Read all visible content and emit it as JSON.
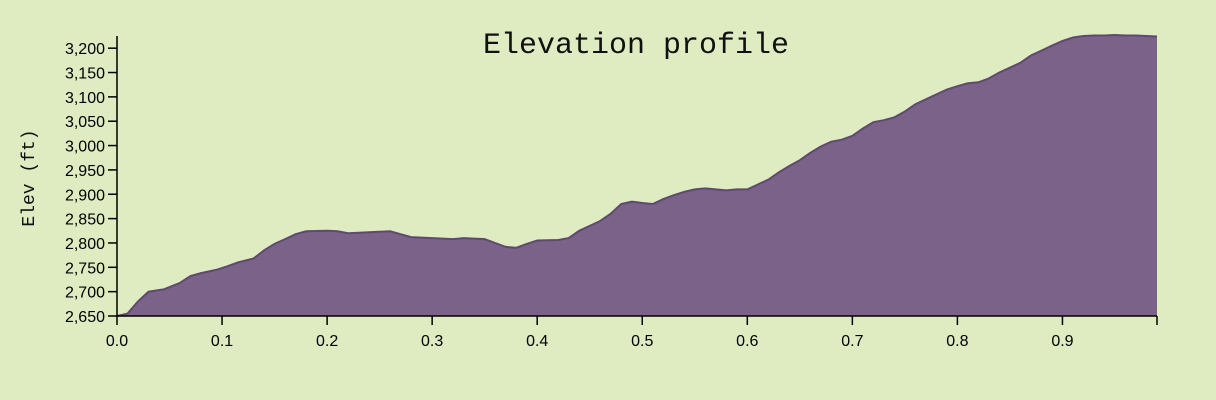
{
  "chart_data": {
    "type": "area",
    "title": "Elevation profile",
    "xlabel": "",
    "ylabel": "Elev (ft)",
    "xlim": [
      0,
      0.99
    ],
    "ylim": [
      2650,
      3225
    ],
    "x_ticks": [
      "0.0",
      "0.1",
      "0.2",
      "0.3",
      "0.4",
      "0.5",
      "0.6",
      "0.7",
      "0.8",
      "0.9"
    ],
    "x_tick_values": [
      0,
      0.1,
      0.2,
      0.3,
      0.4,
      0.5,
      0.6,
      0.7,
      0.8,
      0.9
    ],
    "y_ticks": [
      "2,650",
      "2,700",
      "2,750",
      "2,800",
      "2,850",
      "2,900",
      "2,950",
      "3,000",
      "3,050",
      "3,100",
      "3,150",
      "3,200"
    ],
    "y_tick_values": [
      2650,
      2700,
      2750,
      2800,
      2850,
      2900,
      2950,
      3000,
      3050,
      3100,
      3150,
      3200
    ],
    "grid": false,
    "colors": {
      "fill": "#7a6288",
      "line": "#5f4a6f",
      "background": "#dfebc1"
    },
    "x": [
      0.0,
      0.01,
      0.02,
      0.025,
      0.03,
      0.045,
      0.06,
      0.07,
      0.08,
      0.095,
      0.105,
      0.115,
      0.13,
      0.14,
      0.15,
      0.16,
      0.17,
      0.18,
      0.2,
      0.21,
      0.22,
      0.24,
      0.26,
      0.27,
      0.28,
      0.3,
      0.32,
      0.33,
      0.35,
      0.36,
      0.37,
      0.38,
      0.39,
      0.4,
      0.42,
      0.43,
      0.44,
      0.45,
      0.46,
      0.47,
      0.48,
      0.49,
      0.5,
      0.51,
      0.52,
      0.53,
      0.54,
      0.55,
      0.56,
      0.57,
      0.58,
      0.59,
      0.6,
      0.61,
      0.62,
      0.63,
      0.64,
      0.65,
      0.66,
      0.67,
      0.68,
      0.69,
      0.7,
      0.71,
      0.72,
      0.73,
      0.74,
      0.75,
      0.76,
      0.77,
      0.78,
      0.79,
      0.8,
      0.81,
      0.82,
      0.83,
      0.84,
      0.85,
      0.86,
      0.87,
      0.88,
      0.89,
      0.9,
      0.91,
      0.92,
      0.93,
      0.94,
      0.95,
      0.96,
      0.97,
      0.98,
      0.99
    ],
    "y": [
      2650,
      2655,
      2680,
      2690,
      2700,
      2705,
      2718,
      2732,
      2738,
      2745,
      2752,
      2760,
      2768,
      2785,
      2798,
      2808,
      2818,
      2824,
      2825,
      2824,
      2820,
      2822,
      2824,
      2818,
      2812,
      2810,
      2808,
      2810,
      2808,
      2800,
      2792,
      2790,
      2798,
      2805,
      2806,
      2810,
      2825,
      2835,
      2845,
      2860,
      2880,
      2885,
      2882,
      2880,
      2890,
      2898,
      2905,
      2910,
      2912,
      2910,
      2908,
      2910,
      2910,
      2920,
      2930,
      2945,
      2958,
      2970,
      2985,
      2998,
      3008,
      3012,
      3020,
      3035,
      3048,
      3052,
      3058,
      3070,
      3085,
      3095,
      3105,
      3115,
      3122,
      3128,
      3130,
      3138,
      3150,
      3160,
      3170,
      3185,
      3195,
      3205,
      3215,
      3222,
      3225,
      3226,
      3226,
      3227,
      3226,
      3226,
      3225,
      3224
    ]
  }
}
